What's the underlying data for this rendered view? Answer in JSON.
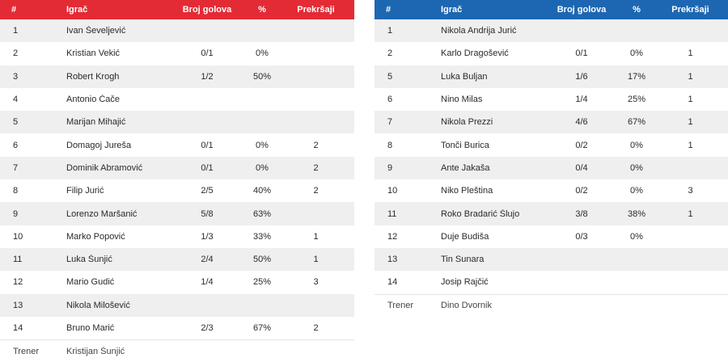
{
  "headers": {
    "num": "#",
    "player": "Igrač",
    "goals": "Broj golova",
    "pct": "%",
    "fouls": "Prekršaji"
  },
  "left": {
    "rows": [
      {
        "num": "1",
        "name": "Ivan Ševeljević",
        "goals": "",
        "pct": "",
        "fouls": ""
      },
      {
        "num": "2",
        "name": "Kristian Vekić",
        "goals": "0/1",
        "pct": "0%",
        "fouls": ""
      },
      {
        "num": "3",
        "name": "Robert Krogh",
        "goals": "1/2",
        "pct": "50%",
        "fouls": ""
      },
      {
        "num": "4",
        "name": "Antonio Čače",
        "goals": "",
        "pct": "",
        "fouls": ""
      },
      {
        "num": "5",
        "name": "Marijan Mihajić",
        "goals": "",
        "pct": "",
        "fouls": ""
      },
      {
        "num": "6",
        "name": "Domagoj Jureša",
        "goals": "0/1",
        "pct": "0%",
        "fouls": "2"
      },
      {
        "num": "7",
        "name": "Dominik Abramović",
        "goals": "0/1",
        "pct": "0%",
        "fouls": "2"
      },
      {
        "num": "8",
        "name": "Filip Jurić",
        "goals": "2/5",
        "pct": "40%",
        "fouls": "2"
      },
      {
        "num": "9",
        "name": "Lorenzo Maršanić",
        "goals": "5/8",
        "pct": "63%",
        "fouls": ""
      },
      {
        "num": "10",
        "name": "Marko Popović",
        "goals": "1/3",
        "pct": "33%",
        "fouls": "1"
      },
      {
        "num": "11",
        "name": "Luka Šunjić",
        "goals": "2/4",
        "pct": "50%",
        "fouls": "1"
      },
      {
        "num": "12",
        "name": "Mario Gudić",
        "goals": "1/4",
        "pct": "25%",
        "fouls": "3"
      },
      {
        "num": "13",
        "name": "Nikola Milošević",
        "goals": "",
        "pct": "",
        "fouls": ""
      },
      {
        "num": "14",
        "name": "Bruno Marić",
        "goals": "2/3",
        "pct": "67%",
        "fouls": "2"
      }
    ],
    "coach": {
      "label": "Trener",
      "name": "Kristijan Šunjić"
    }
  },
  "right": {
    "rows": [
      {
        "num": "1",
        "name": "Nikola Andrija Jurić",
        "goals": "",
        "pct": "",
        "fouls": ""
      },
      {
        "num": "2",
        "name": "Karlo Dragošević",
        "goals": "0/1",
        "pct": "0%",
        "fouls": "1"
      },
      {
        "num": "5",
        "name": "Luka Buljan",
        "goals": "1/6",
        "pct": "17%",
        "fouls": "1"
      },
      {
        "num": "6",
        "name": "Nino Milas",
        "goals": "1/4",
        "pct": "25%",
        "fouls": "1"
      },
      {
        "num": "7",
        "name": "Nikola Prezzi",
        "goals": "4/6",
        "pct": "67%",
        "fouls": "1"
      },
      {
        "num": "8",
        "name": "Tonči Burica",
        "goals": "0/2",
        "pct": "0%",
        "fouls": "1"
      },
      {
        "num": "9",
        "name": "Ante Jakaša",
        "goals": "0/4",
        "pct": "0%",
        "fouls": ""
      },
      {
        "num": "10",
        "name": "Niko Pleština",
        "goals": "0/2",
        "pct": "0%",
        "fouls": "3"
      },
      {
        "num": "11",
        "name": "Roko Bradarić Šlujo",
        "goals": "3/8",
        "pct": "38%",
        "fouls": "1"
      },
      {
        "num": "12",
        "name": "Duje Budiša",
        "goals": "0/3",
        "pct": "0%",
        "fouls": ""
      },
      {
        "num": "13",
        "name": "Tin Sunara",
        "goals": "",
        "pct": "",
        "fouls": ""
      },
      {
        "num": "14",
        "name": "Josip Rajčić",
        "goals": "",
        "pct": "",
        "fouls": ""
      }
    ],
    "coach": {
      "label": "Trener",
      "name": "Dino Dvornik"
    }
  }
}
